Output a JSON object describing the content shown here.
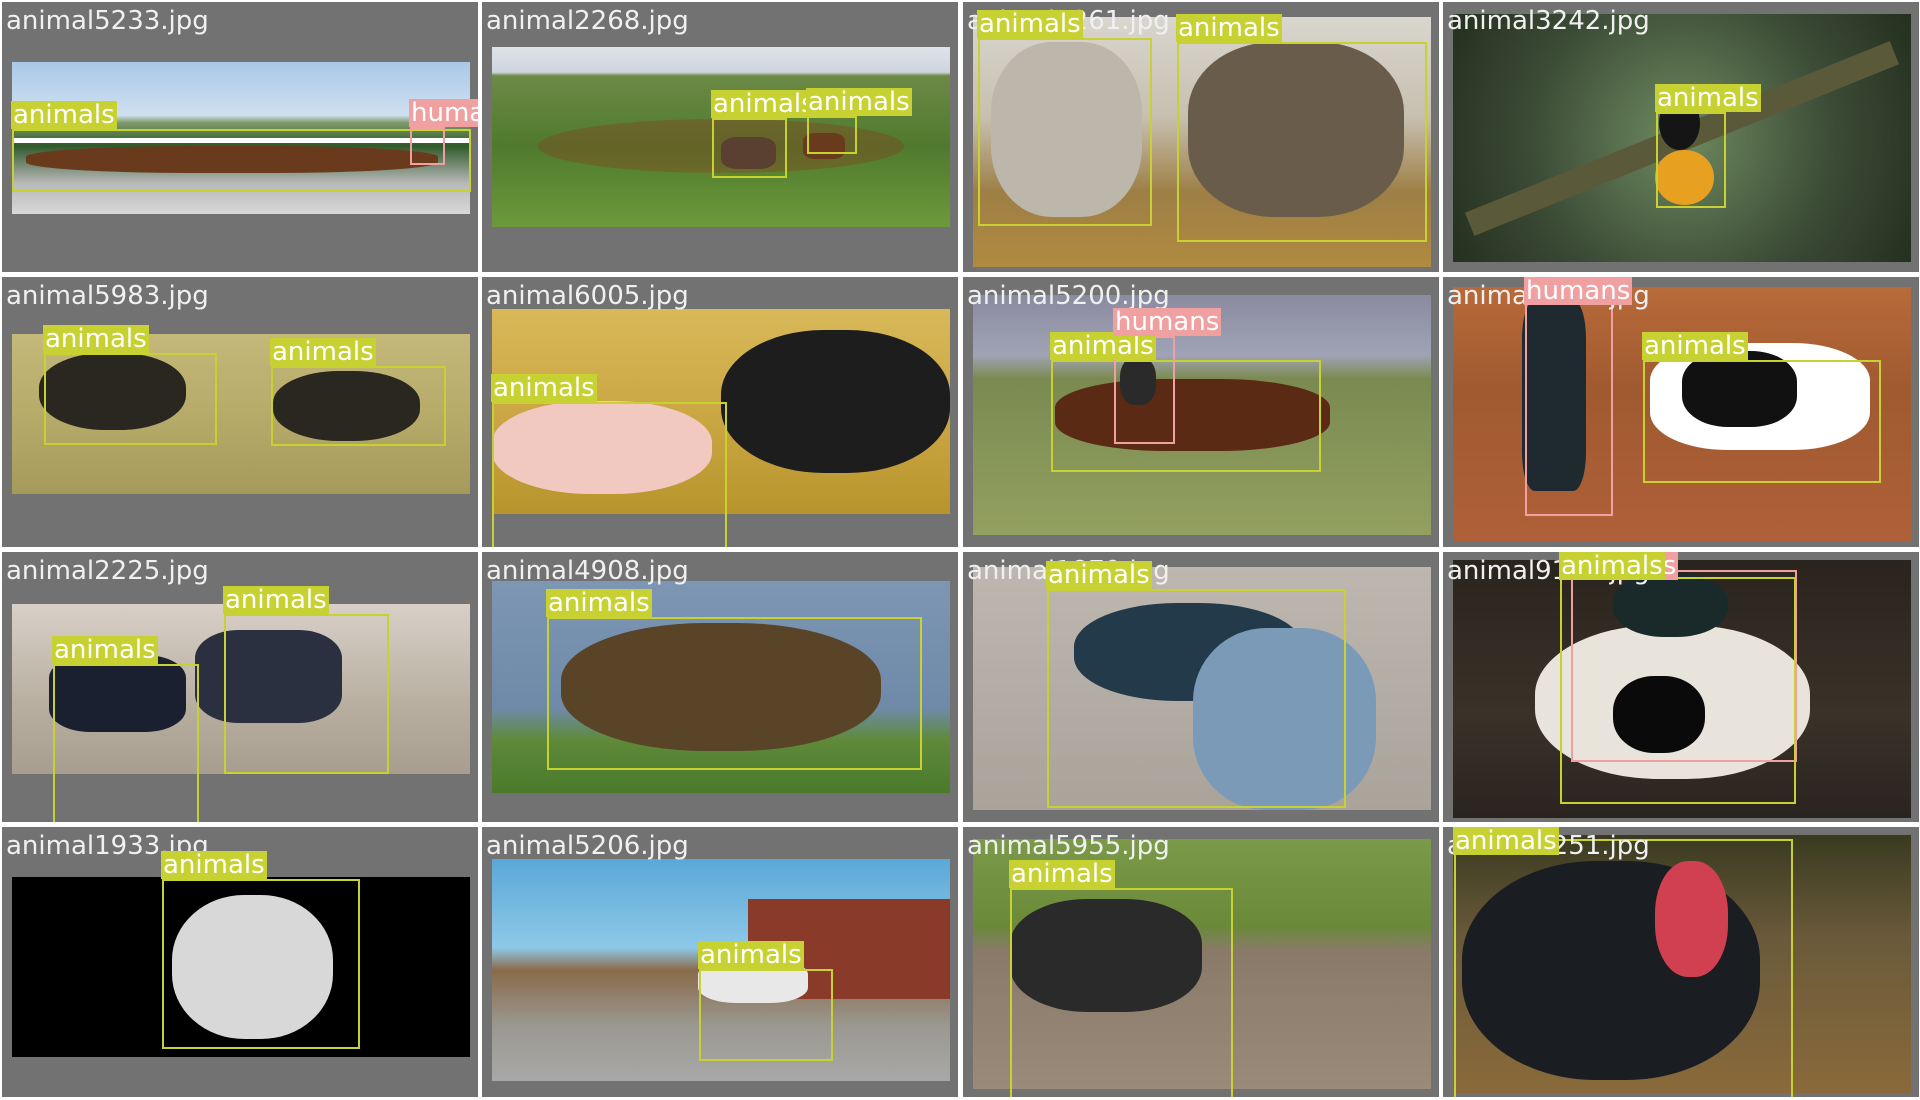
{
  "colors": {
    "animals": "#c8d132",
    "humans": "#f0a0a0",
    "tile_bg": "#727272",
    "label_text": "#ffffff"
  },
  "classes": [
    "animals",
    "humans"
  ],
  "tiles": [
    {
      "filename": "animal5233.jpg",
      "boxes": [
        {
          "label": "animals"
        },
        {
          "label": "humans"
        }
      ]
    },
    {
      "filename": "animal2268.jpg",
      "boxes": [
        {
          "label": "animals"
        },
        {
          "label": "animals"
        }
      ]
    },
    {
      "filename": "animal5261.jpg",
      "boxes": [
        {
          "label": "animals"
        },
        {
          "label": "animals"
        }
      ]
    },
    {
      "filename": "animal3242.jpg",
      "boxes": [
        {
          "label": "animals"
        }
      ]
    },
    {
      "filename": "animal5983.jpg",
      "boxes": [
        {
          "label": "animals"
        },
        {
          "label": "animals"
        }
      ]
    },
    {
      "filename": "animal6005.jpg",
      "boxes": [
        {
          "label": "animals"
        }
      ]
    },
    {
      "filename": "animal5200.jpg",
      "boxes": [
        {
          "label": "animals"
        },
        {
          "label": "humans"
        }
      ]
    },
    {
      "filename": "animal4538.jpg",
      "boxes": [
        {
          "label": "humans"
        },
        {
          "label": "animals"
        }
      ]
    },
    {
      "filename": "animal2225.jpg",
      "boxes": [
        {
          "label": "animals"
        },
        {
          "label": "animals"
        }
      ]
    },
    {
      "filename": "animal4908.jpg",
      "boxes": [
        {
          "label": "animals"
        }
      ]
    },
    {
      "filename": "animal1879.jpg",
      "boxes": [
        {
          "label": "animals"
        }
      ]
    },
    {
      "filename": "animal9122.jpg",
      "boxes": [
        {
          "label": "humans"
        },
        {
          "label": "animals"
        }
      ]
    },
    {
      "filename": "animal1933.jpg",
      "boxes": [
        {
          "label": "animals"
        }
      ]
    },
    {
      "filename": "animal5206.jpg",
      "boxes": [
        {
          "label": "animals"
        }
      ]
    },
    {
      "filename": "animal5955.jpg",
      "boxes": [
        {
          "label": "animals"
        }
      ]
    },
    {
      "filename": "animal6251.jpg",
      "boxes": [
        {
          "label": "animals"
        }
      ]
    }
  ]
}
